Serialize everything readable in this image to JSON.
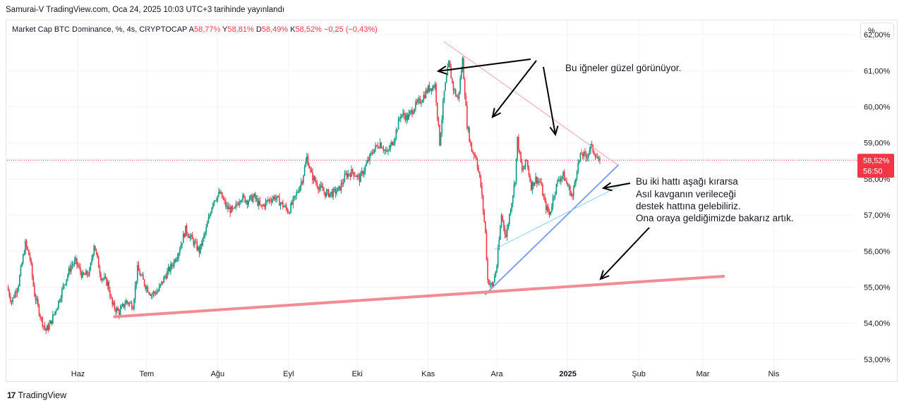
{
  "header": {
    "caption": "Samurai-V TradingView.com, Oca 24, 2025 10:03 UTC+3 tarihinde yayınlandı"
  },
  "legend": {
    "symbol": "Market Cap BTC Dominance, %, 4s, CRYPTOCAP",
    "o_label": "A",
    "o_value": "58,77%",
    "h_label": "Y",
    "h_value": "58,81%",
    "l_label": "D",
    "l_value": "58,49%",
    "c_label": "K",
    "c_value": "58,52%",
    "change": "−0,25 (−0,43%)"
  },
  "scale_button": "%",
  "footer": {
    "brand": "TradingView",
    "logo": "17"
  },
  "colors": {
    "up": "#089981",
    "down": "#f23645",
    "price_line": "#f23645"
  },
  "chart_data": {
    "type": "candlestick",
    "title": "",
    "ylim": [
      52.9,
      62.1
    ],
    "y_ticks": [
      "53,00%",
      "54,00%",
      "55,00%",
      "56,00%",
      "57,00%",
      "58,00%",
      "59,00%",
      "60,00%",
      "61,00%",
      "62,00%"
    ],
    "y_tick_values": [
      53,
      54,
      55,
      56,
      57,
      58,
      59,
      60,
      61,
      62
    ],
    "x_ticks": [
      "Haz",
      "Tem",
      "Ağu",
      "Eyl",
      "Eki",
      "Kas",
      "Ara",
      "2025",
      "Şub",
      "Mar",
      "Nis"
    ],
    "x_tick_days": [
      31,
      61,
      92,
      123,
      153,
      184,
      214,
      245,
      276,
      304,
      335
    ],
    "x_range_days": [
      0,
      370
    ],
    "last_price": "58,52%",
    "last_price_value": 58.52,
    "countdown": "56:50",
    "close_path": [
      [
        0,
        55.0
      ],
      [
        2,
        54.6
      ],
      [
        5,
        55.1
      ],
      [
        8,
        56.2
      ],
      [
        10,
        55.8
      ],
      [
        12,
        54.8
      ],
      [
        15,
        54.1
      ],
      [
        17,
        53.8
      ],
      [
        19,
        54.0
      ],
      [
        22,
        54.5
      ],
      [
        25,
        55.1
      ],
      [
        28,
        55.6
      ],
      [
        30,
        55.7
      ],
      [
        33,
        55.3
      ],
      [
        36,
        55.4
      ],
      [
        38,
        56.2
      ],
      [
        41,
        55.3
      ],
      [
        44,
        55.1
      ],
      [
        46,
        54.5
      ],
      [
        49,
        54.3
      ],
      [
        52,
        54.6
      ],
      [
        55,
        54.5
      ],
      [
        57,
        55.5
      ],
      [
        60,
        55.1
      ],
      [
        63,
        54.8
      ],
      [
        66,
        54.9
      ],
      [
        69,
        55.3
      ],
      [
        72,
        55.6
      ],
      [
        75,
        56.0
      ],
      [
        78,
        56.6
      ],
      [
        81,
        56.3
      ],
      [
        84,
        56.0
      ],
      [
        87,
        56.6
      ],
      [
        90,
        57.4
      ],
      [
        93,
        57.6
      ],
      [
        96,
        57.2
      ],
      [
        99,
        57.1
      ],
      [
        102,
        57.5
      ],
      [
        105,
        57.4
      ],
      [
        108,
        57.5
      ],
      [
        111,
        57.2
      ],
      [
        114,
        57.4
      ],
      [
        117,
        57.5
      ],
      [
        120,
        57.3
      ],
      [
        123,
        57.1
      ],
      [
        126,
        57.5
      ],
      [
        129,
        58.0
      ],
      [
        131,
        58.6
      ],
      [
        133,
        58.1
      ],
      [
        136,
        57.8
      ],
      [
        139,
        57.6
      ],
      [
        142,
        57.6
      ],
      [
        145,
        57.7
      ],
      [
        148,
        58.1
      ],
      [
        151,
        58.2
      ],
      [
        154,
        58.0
      ],
      [
        157,
        58.4
      ],
      [
        160,
        58.8
      ],
      [
        163,
        59.0
      ],
      [
        166,
        58.7
      ],
      [
        169,
        59.1
      ],
      [
        172,
        59.8
      ],
      [
        175,
        59.7
      ],
      [
        178,
        60.0
      ],
      [
        181,
        60.2
      ],
      [
        184,
        60.5
      ],
      [
        187,
        60.6
      ],
      [
        189,
        59.0
      ],
      [
        191,
        60.4
      ],
      [
        193,
        61.2
      ],
      [
        195,
        60.5
      ],
      [
        197,
        60.2
      ],
      [
        199,
        61.3
      ],
      [
        201,
        59.5
      ],
      [
        203,
        58.8
      ],
      [
        205,
        58.6
      ],
      [
        207,
        57.8
      ],
      [
        209,
        56.5
      ],
      [
        210,
        55.2
      ],
      [
        212,
        55.0
      ],
      [
        214,
        55.6
      ],
      [
        216,
        57.0
      ],
      [
        218,
        56.4
      ],
      [
        220,
        57.2
      ],
      [
        222,
        58.0
      ],
      [
        223,
        59.1
      ],
      [
        225,
        58.2
      ],
      [
        227,
        58.5
      ],
      [
        229,
        57.8
      ],
      [
        231,
        58.0
      ],
      [
        233,
        57.9
      ],
      [
        235,
        57.3
      ],
      [
        237,
        57.0
      ],
      [
        239,
        57.6
      ],
      [
        241,
        58.0
      ],
      [
        243,
        58.1
      ],
      [
        245,
        57.8
      ],
      [
        247,
        57.5
      ],
      [
        249,
        58.3
      ],
      [
        251,
        58.7
      ],
      [
        253,
        58.6
      ],
      [
        255,
        58.9
      ],
      [
        257,
        58.7
      ],
      [
        259,
        58.4
      ]
    ],
    "trendlines": [
      {
        "name": "resistance",
        "from": [
          191,
          61.8
        ],
        "to": [
          267,
          58.38
        ],
        "color": "#f7a1a8",
        "width": 1
      },
      {
        "name": "steep-support",
        "from": [
          209,
          54.8
        ],
        "to": [
          267,
          58.38
        ],
        "color": "#7fa0f0",
        "width": 2
      },
      {
        "name": "thin-support",
        "from": [
          213,
          56.05
        ],
        "to": [
          269,
          57.85
        ],
        "color": "#7fd6ea",
        "width": 1
      },
      {
        "name": "long-support",
        "from": [
          47,
          54.18
        ],
        "to": [
          313,
          55.3
        ],
        "color": "#f28b94",
        "width": 4
      }
    ],
    "annotations": {
      "top_note": "Bu iğneler güzel görünüyor.",
      "right_note_1": "Bu iki hattı aşağı kırarsa",
      "right_note_2": "Asıl kavganın verileceği",
      "right_note_3": "destek hattına gelebiliriz.",
      "right_note_4": "Ona oraya geldiğimizde bakarız artık."
    }
  }
}
